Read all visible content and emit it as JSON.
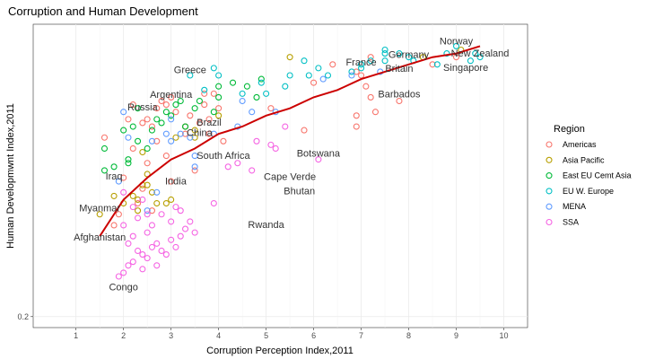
{
  "chart_data": {
    "type": "scatter",
    "title": "Corruption and Human Development",
    "xlabel": "Corruption Perception Index,2011",
    "ylabel": "Human Developmwnt Index,2011",
    "xlim": [
      0.1,
      10.5
    ],
    "ylim": [
      0.17,
      1.0
    ],
    "x_ticks": [
      1,
      2,
      3,
      4,
      5,
      6,
      7,
      8,
      9,
      10
    ],
    "y_ticks": [
      0.2
    ],
    "grid": true,
    "legend": {
      "title": "Region",
      "position": "right"
    },
    "series": [
      {
        "name": "Americas",
        "color": "#F8766D",
        "points": [
          [
            2.9,
            0.78
          ],
          [
            3.1,
            0.76
          ],
          [
            3.8,
            0.7
          ],
          [
            2.2,
            0.66
          ],
          [
            2.7,
            0.68
          ],
          [
            2.5,
            0.62
          ],
          [
            3.3,
            0.7
          ],
          [
            2.9,
            0.64
          ],
          [
            2.0,
            0.58
          ],
          [
            2.4,
            0.55
          ],
          [
            3.6,
            0.73
          ],
          [
            3.5,
            0.6
          ],
          [
            2.6,
            0.72
          ],
          [
            3.9,
            0.81
          ],
          [
            2.3,
            0.51
          ],
          [
            1.9,
            0.48
          ],
          [
            1.8,
            0.45
          ],
          [
            2.6,
            0.49
          ],
          [
            3.0,
            0.57
          ],
          [
            6.0,
            0.84
          ],
          [
            6.9,
            0.87
          ],
          [
            7.1,
            0.83
          ],
          [
            7.0,
            0.86
          ],
          [
            7.8,
            0.79
          ],
          [
            7.2,
            0.8
          ],
          [
            6.9,
            0.75
          ],
          [
            5.1,
            0.77
          ],
          [
            5.8,
            0.71
          ],
          [
            6.9,
            0.72
          ],
          [
            7.3,
            0.76
          ],
          [
            6.4,
            0.89
          ],
          [
            9.0,
            0.91
          ],
          [
            8.5,
            0.89
          ],
          [
            7.2,
            0.91
          ],
          [
            2.2,
            0.78
          ],
          [
            2.8,
            0.79
          ],
          [
            2.7,
            0.77
          ],
          [
            2.4,
            0.73
          ],
          [
            2.1,
            0.74
          ],
          [
            3.0,
            0.8
          ],
          [
            3.4,
            0.75
          ],
          [
            3.3,
            0.72
          ],
          [
            4.0,
            0.77
          ],
          [
            4.1,
            0.68
          ],
          [
            3.7,
            0.78
          ],
          [
            3.7,
            0.81
          ],
          [
            2.5,
            0.74
          ],
          [
            1.6,
            0.69
          ],
          [
            3.8,
            0.74
          ]
        ]
      },
      {
        "name": "Asia Pacific",
        "color": "#B79F00",
        "points": [
          [
            5.5,
            0.91
          ],
          [
            8.3,
            0.91
          ],
          [
            9.1,
            0.93
          ],
          [
            2.3,
            0.52
          ],
          [
            2.7,
            0.51
          ],
          [
            3.0,
            0.52
          ],
          [
            2.4,
            0.56
          ],
          [
            3.1,
            0.69
          ],
          [
            3.5,
            0.69
          ],
          [
            1.5,
            0.48
          ],
          [
            1.8,
            0.53
          ],
          [
            2.5,
            0.56
          ],
          [
            2.9,
            0.51
          ],
          [
            2.6,
            0.54
          ],
          [
            2.3,
            0.49
          ],
          [
            3.5,
            0.71
          ],
          [
            3.3,
            0.72
          ],
          [
            2.4,
            0.65
          ],
          [
            4.0,
            0.75
          ],
          [
            2.5,
            0.59
          ],
          [
            2.2,
            0.53
          ],
          [
            2.0,
            0.51
          ]
        ]
      },
      {
        "name": "East EU Cemt Asia",
        "color": "#00BA38",
        "points": [
          [
            1.6,
            0.6
          ],
          [
            1.6,
            0.66
          ],
          [
            2.1,
            0.62
          ],
          [
            2.3,
            0.68
          ],
          [
            2.5,
            0.66
          ],
          [
            2.9,
            0.76
          ],
          [
            3.0,
            0.75
          ],
          [
            3.1,
            0.78
          ],
          [
            3.2,
            0.79
          ],
          [
            3.3,
            0.72
          ],
          [
            3.5,
            0.77
          ],
          [
            4.0,
            0.8
          ],
          [
            4.0,
            0.83
          ],
          [
            4.3,
            0.84
          ],
          [
            4.6,
            0.83
          ],
          [
            4.9,
            0.85
          ],
          [
            4.8,
            0.8
          ],
          [
            2.2,
            0.72
          ],
          [
            2.6,
            0.71
          ],
          [
            2.0,
            0.71
          ],
          [
            2.7,
            0.74
          ],
          [
            2.3,
            0.77
          ],
          [
            2.8,
            0.73
          ],
          [
            3.9,
            0.76
          ],
          [
            3.6,
            0.79
          ],
          [
            2.1,
            0.63
          ],
          [
            1.8,
            0.61
          ]
        ]
      },
      {
        "name": "EU W. Europe",
        "color": "#00BFC4",
        "points": [
          [
            7.0,
            0.88
          ],
          [
            7.5,
            0.92
          ],
          [
            8.0,
            0.91
          ],
          [
            9.0,
            0.94
          ],
          [
            9.3,
            0.9
          ],
          [
            9.5,
            0.91
          ],
          [
            8.8,
            0.92
          ],
          [
            8.6,
            0.89
          ],
          [
            7.5,
            0.9
          ],
          [
            7.0,
            0.89
          ],
          [
            6.8,
            0.87
          ],
          [
            6.1,
            0.88
          ],
          [
            5.8,
            0.9
          ],
          [
            5.9,
            0.86
          ],
          [
            6.3,
            0.86
          ],
          [
            5.5,
            0.86
          ],
          [
            5.4,
            0.83
          ],
          [
            4.9,
            0.84
          ],
          [
            4.5,
            0.81
          ],
          [
            4.0,
            0.86
          ],
          [
            3.9,
            0.88
          ],
          [
            3.4,
            0.86
          ],
          [
            3.7,
            0.82
          ],
          [
            7.2,
            0.9
          ],
          [
            7.8,
            0.92
          ],
          [
            8.1,
            0.9
          ],
          [
            9.4,
            0.92
          ],
          [
            7.5,
            0.93
          ],
          [
            5.0,
            0.81
          ]
        ]
      },
      {
        "name": "MENA",
        "color": "#619CFF",
        "points": [
          [
            2.9,
            0.7
          ],
          [
            3.0,
            0.68
          ],
          [
            2.6,
            0.68
          ],
          [
            3.4,
            0.69
          ],
          [
            3.9,
            0.7
          ],
          [
            4.4,
            0.72
          ],
          [
            4.5,
            0.79
          ],
          [
            4.7,
            0.76
          ],
          [
            5.2,
            0.76
          ],
          [
            6.8,
            0.86
          ],
          [
            6.2,
            0.85
          ],
          [
            7.4,
            0.87
          ],
          [
            3.0,
            0.74
          ],
          [
            3.2,
            0.7
          ],
          [
            2.0,
            0.76
          ],
          [
            3.5,
            0.64
          ],
          [
            3.5,
            0.61
          ],
          [
            2.5,
            0.49
          ],
          [
            2.7,
            0.54
          ],
          [
            2.1,
            0.69
          ],
          [
            1.9,
            0.57
          ]
        ]
      },
      {
        "name": "SSA",
        "color": "#F564E3",
        "points": [
          [
            2.0,
            0.45
          ],
          [
            2.1,
            0.4
          ],
          [
            2.2,
            0.42
          ],
          [
            2.3,
            0.38
          ],
          [
            2.4,
            0.37
          ],
          [
            2.5,
            0.36
          ],
          [
            2.6,
            0.39
          ],
          [
            2.7,
            0.4
          ],
          [
            2.8,
            0.38
          ],
          [
            2.9,
            0.37
          ],
          [
            3.0,
            0.41
          ],
          [
            3.1,
            0.39
          ],
          [
            3.2,
            0.42
          ],
          [
            3.3,
            0.44
          ],
          [
            3.4,
            0.46
          ],
          [
            3.5,
            0.43
          ],
          [
            2.2,
            0.35
          ],
          [
            2.4,
            0.33
          ],
          [
            2.0,
            0.32
          ],
          [
            1.9,
            0.31
          ],
          [
            2.1,
            0.34
          ],
          [
            2.5,
            0.43
          ],
          [
            2.6,
            0.45
          ],
          [
            2.8,
            0.48
          ],
          [
            3.0,
            0.46
          ],
          [
            3.2,
            0.49
          ],
          [
            2.3,
            0.47
          ],
          [
            2.7,
            0.34
          ],
          [
            3.9,
            0.51
          ],
          [
            4.2,
            0.61
          ],
          [
            4.4,
            0.62
          ],
          [
            4.7,
            0.6
          ],
          [
            5.1,
            0.67
          ],
          [
            5.2,
            0.66
          ],
          [
            6.1,
            0.63
          ],
          [
            5.4,
            0.72
          ],
          [
            2.4,
            0.52
          ],
          [
            2.5,
            0.48
          ],
          [
            2.2,
            0.5
          ],
          [
            2.0,
            0.54
          ],
          [
            4.8,
            0.68
          ],
          [
            3.1,
            0.5
          ]
        ]
      }
    ],
    "trend_line": {
      "color": "#CC0000",
      "points": [
        [
          1.5,
          0.42
        ],
        [
          2.0,
          0.52
        ],
        [
          2.5,
          0.58
        ],
        [
          3.0,
          0.63
        ],
        [
          3.5,
          0.66
        ],
        [
          4.0,
          0.7
        ],
        [
          4.5,
          0.72
        ],
        [
          5.0,
          0.75
        ],
        [
          5.5,
          0.77
        ],
        [
          6.0,
          0.8
        ],
        [
          6.5,
          0.82
        ],
        [
          7.0,
          0.85
        ],
        [
          7.5,
          0.87
        ],
        [
          8.0,
          0.89
        ],
        [
          8.5,
          0.91
        ],
        [
          9.0,
          0.92
        ],
        [
          9.5,
          0.94
        ]
      ]
    },
    "annotations": [
      {
        "text": "Norway",
        "x": 9.0,
        "y": 0.955
      },
      {
        "text": "New Zealand",
        "x": 9.5,
        "y": 0.922
      },
      {
        "text": "Germany",
        "x": 8.0,
        "y": 0.918
      },
      {
        "text": "France",
        "x": 7.0,
        "y": 0.897
      },
      {
        "text": "Britain",
        "x": 7.8,
        "y": 0.88
      },
      {
        "text": "Singapore",
        "x": 9.2,
        "y": 0.882
      },
      {
        "text": "Barbados",
        "x": 7.8,
        "y": 0.81
      },
      {
        "text": "Greece",
        "x": 3.4,
        "y": 0.876
      },
      {
        "text": "Argentina",
        "x": 3.0,
        "y": 0.808
      },
      {
        "text": "Russia",
        "x": 2.4,
        "y": 0.774
      },
      {
        "text": "Brazil",
        "x": 3.8,
        "y": 0.732
      },
      {
        "text": "China",
        "x": 3.6,
        "y": 0.704
      },
      {
        "text": "South Africa",
        "x": 4.1,
        "y": 0.641
      },
      {
        "text": "Botswana",
        "x": 6.1,
        "y": 0.648
      },
      {
        "text": "Iraq",
        "x": 1.8,
        "y": 0.585
      },
      {
        "text": "India",
        "x": 3.1,
        "y": 0.572
      },
      {
        "text": "Cape Verde",
        "x": 5.5,
        "y": 0.584
      },
      {
        "text": "Bhutan",
        "x": 5.7,
        "y": 0.544
      },
      {
        "text": "Myanmar",
        "x": 1.5,
        "y": 0.498
      },
      {
        "text": "Rwanda",
        "x": 5.0,
        "y": 0.452
      },
      {
        "text": "Afghanistan",
        "x": 1.5,
        "y": 0.418
      },
      {
        "text": "Congo",
        "x": 2.0,
        "y": 0.282
      }
    ]
  }
}
